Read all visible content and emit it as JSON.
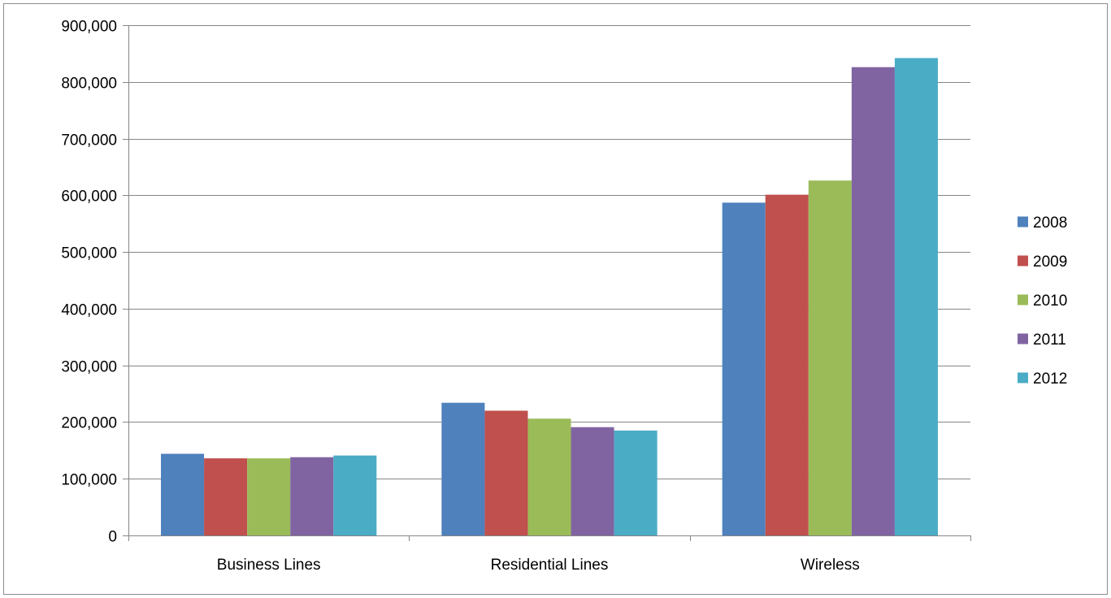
{
  "chart_data": {
    "type": "bar",
    "title": "",
    "xlabel": "",
    "ylabel": "",
    "categories": [
      "Business Lines",
      "Residential Lines",
      "Wireless"
    ],
    "series": [
      {
        "name": "2008",
        "color": "#4F81BD",
        "values": [
          144000,
          234000,
          587000
        ]
      },
      {
        "name": "2009",
        "color": "#C0504D",
        "values": [
          136000,
          220000,
          601000
        ]
      },
      {
        "name": "2010",
        "color": "#9BBB59",
        "values": [
          136000,
          206000,
          626000
        ]
      },
      {
        "name": "2011",
        "color": "#8064A2",
        "values": [
          138000,
          191000,
          826000
        ]
      },
      {
        "name": "2012",
        "color": "#4BACC6",
        "values": [
          141000,
          185000,
          842000
        ]
      }
    ],
    "ylim": [
      0,
      900000
    ],
    "yticks": [
      0,
      100000,
      200000,
      300000,
      400000,
      500000,
      600000,
      700000,
      800000,
      900000
    ],
    "ytick_labels": [
      "0",
      "100,000",
      "200,000",
      "300,000",
      "400,000",
      "500,000",
      "600,000",
      "700,000",
      "800,000",
      "900,000"
    ],
    "grid": true,
    "legend_position": "right"
  }
}
